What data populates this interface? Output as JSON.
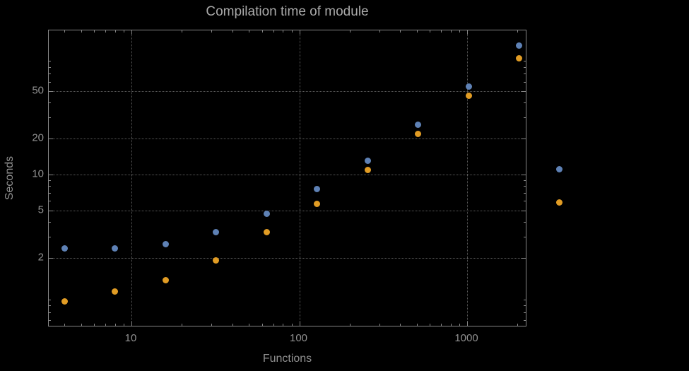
{
  "chart_data": {
    "type": "scatter",
    "title": "Compilation time of module",
    "xlabel": "Functions",
    "ylabel": "Seconds",
    "x_scale": "log",
    "y_scale": "log",
    "grid": true,
    "x_ticks": [
      10,
      100,
      1000
    ],
    "y_ticks": [
      2,
      5,
      10,
      20,
      50
    ],
    "x_range_approx": [
      3.2,
      2280
    ],
    "y_range_approx": [
      0.53,
      160
    ],
    "x": [
      4,
      8,
      16,
      32,
      64,
      128,
      256,
      512,
      1024,
      2048
    ],
    "series": [
      {
        "name": "series-1-blue",
        "color": "#5e81b5",
        "values": [
          2.4,
          2.4,
          2.6,
          3.3,
          4.7,
          7.6,
          13,
          26,
          55,
          120
        ]
      },
      {
        "name": "series-2-orange",
        "color": "#e19c24",
        "values": [
          0.86,
          1.05,
          1.3,
          1.9,
          3.3,
          5.7,
          11,
          22,
          46,
          94
        ]
      }
    ],
    "legend_position": "right",
    "colors": {
      "background": "#000000",
      "frame": "#868686",
      "grid": "#5c5c5c",
      "labels": "#919191",
      "title": "#a9a9a9"
    }
  }
}
